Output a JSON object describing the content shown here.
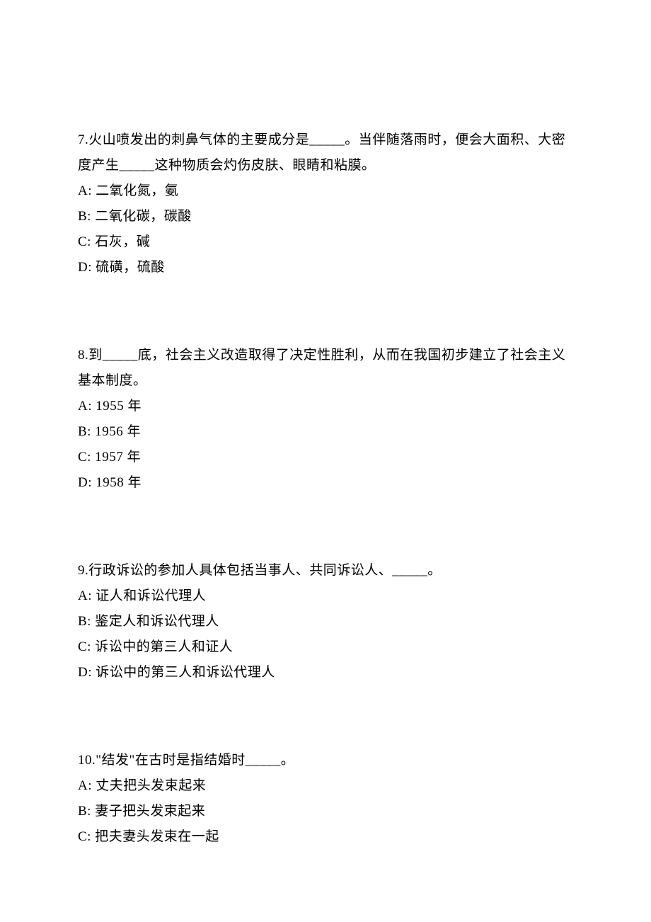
{
  "page": {
    "background_color": "#ffffff",
    "text_color": "#000000",
    "font_family": "SimSun",
    "font_size": 19,
    "line_height": 36
  },
  "questions": [
    {
      "number": "7",
      "text": "7.火山喷发出的刺鼻气体的主要成分是_____。当伴随落雨时，便会大面积、大密度产生_____这种物质会灼伤皮肤、眼睛和粘膜。",
      "options": [
        "A: 二氧化氮，氨",
        "B: 二氧化碳，碳酸",
        "C: 石灰，碱",
        "D: 硫磺，硫酸"
      ]
    },
    {
      "number": "8",
      "text": "8.到_____底，社会主义改造取得了决定性胜利，从而在我国初步建立了社会主义基本制度。",
      "options": [
        "A: 1955 年",
        "B: 1956 年",
        "C: 1957 年",
        "D: 1958 年"
      ]
    },
    {
      "number": "9",
      "text": "9.行政诉讼的参加人具体包括当事人、共同诉讼人、_____。",
      "options": [
        "A: 证人和诉讼代理人",
        "B: 鉴定人和诉讼代理人",
        "C: 诉讼中的第三人和证人",
        "D: 诉讼中的第三人和诉讼代理人"
      ]
    },
    {
      "number": "10",
      "text": "10.\"结发\"在古时是指结婚时_____。",
      "options": [
        "A: 丈夫把头发束起来",
        "B: 妻子把头发束起来",
        "C: 把夫妻头发束在一起"
      ]
    }
  ]
}
